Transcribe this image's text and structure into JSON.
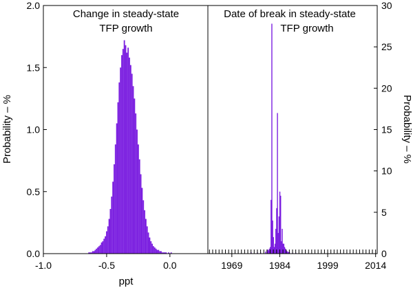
{
  "chart_data": [
    {
      "type": "bar",
      "title_lines": [
        "Change in steady-state",
        "TFP growth"
      ],
      "xlabel": "ppt",
      "ylabel": "Probability – %",
      "xlim": [
        -1.0,
        0.3
      ],
      "ylim": [
        0.0,
        2.0
      ],
      "x_ticks": [
        -1.0,
        -0.5,
        0.0
      ],
      "x_tick_labels": [
        "-1.0",
        "-0.5",
        "0.0"
      ],
      "y_ticks": [
        0.0,
        0.5,
        1.0,
        1.5,
        2.0
      ],
      "y_tick_labels": [
        "0.0",
        "0.5",
        "1.0",
        "1.5",
        "2.0"
      ],
      "color": "#7b1fe0",
      "bin_width": 0.01,
      "x": [
        -0.65,
        -0.64,
        -0.63,
        -0.62,
        -0.61,
        -0.6,
        -0.59,
        -0.58,
        -0.57,
        -0.56,
        -0.55,
        -0.54,
        -0.53,
        -0.52,
        -0.51,
        -0.5,
        -0.49,
        -0.48,
        -0.47,
        -0.46,
        -0.45,
        -0.44,
        -0.43,
        -0.42,
        -0.41,
        -0.4,
        -0.39,
        -0.38,
        -0.37,
        -0.36,
        -0.35,
        -0.34,
        -0.33,
        -0.32,
        -0.31,
        -0.3,
        -0.29,
        -0.28,
        -0.27,
        -0.26,
        -0.25,
        -0.24,
        -0.23,
        -0.22,
        -0.21,
        -0.2,
        -0.19,
        -0.18,
        -0.17,
        -0.16,
        -0.15,
        -0.14,
        -0.13,
        -0.12,
        -0.11,
        -0.1,
        -0.09,
        -0.08,
        -0.07,
        -0.06,
        -0.05,
        -0.04,
        -0.03,
        -0.02,
        -0.01,
        0.0,
        0.01,
        0.02
      ],
      "values": [
        0.0,
        0.01,
        0.01,
        0.01,
        0.02,
        0.02,
        0.03,
        0.04,
        0.05,
        0.06,
        0.07,
        0.09,
        0.1,
        0.12,
        0.14,
        0.18,
        0.22,
        0.28,
        0.36,
        0.46,
        0.58,
        0.72,
        0.88,
        1.05,
        1.22,
        1.38,
        1.5,
        1.6,
        1.65,
        1.72,
        1.68,
        1.62,
        1.66,
        1.58,
        1.52,
        1.45,
        1.35,
        1.25,
        1.13,
        1.0,
        0.88,
        0.76,
        0.64,
        0.53,
        0.43,
        0.35,
        0.28,
        0.22,
        0.17,
        0.13,
        0.1,
        0.08,
        0.06,
        0.05,
        0.04,
        0.03,
        0.03,
        0.02,
        0.02,
        0.01,
        0.01,
        0.01,
        0.01,
        0.0,
        0.01,
        0.0,
        0.01,
        0.0
      ]
    },
    {
      "type": "bar",
      "title_lines": [
        "Date of break in steady-state",
        "TFP growth"
      ],
      "ylabel": "Probability – %",
      "xlim": [
        1961.5,
        2014.5
      ],
      "ylim": [
        0,
        30
      ],
      "x_ticks": [
        1969,
        1984,
        1999,
        2014
      ],
      "x_tick_labels": [
        "1969",
        "1984",
        "1999",
        "2014"
      ],
      "y_ticks": [
        0,
        5,
        10,
        15,
        20,
        25,
        30
      ],
      "y_tick_labels": [
        "0",
        "5",
        "10",
        "15",
        "20",
        "25",
        "30"
      ],
      "color": "#7b1fe0",
      "bin_width": 0.25,
      "x": [
        1975.0,
        1977.0,
        1978.0,
        1979.5,
        1980.0,
        1980.25,
        1980.5,
        1980.75,
        1981.0,
        1981.25,
        1981.5,
        1981.75,
        1982.0,
        1982.25,
        1982.5,
        1982.75,
        1983.0,
        1983.25,
        1983.5,
        1983.75,
        1984.0,
        1984.25,
        1984.5,
        1984.75,
        1985.0,
        1985.25,
        1985.5,
        1985.75,
        1986.0,
        1986.25,
        1986.5,
        1986.75,
        1987.0,
        1988.0,
        1989.0
      ],
      "values": [
        0.15,
        0.12,
        0.12,
        0.25,
        0.3,
        0.5,
        0.4,
        0.6,
        0.8,
        6.5,
        27.8,
        4.0,
        2.0,
        0.8,
        1.2,
        3.0,
        5.5,
        17.0,
        2.5,
        4.5,
        7.5,
        7.0,
        1.5,
        3.0,
        1.2,
        1.2,
        0.8,
        0.6,
        0.4,
        0.3,
        0.2,
        0.2,
        0.2,
        0.1,
        0.1
      ]
    }
  ]
}
